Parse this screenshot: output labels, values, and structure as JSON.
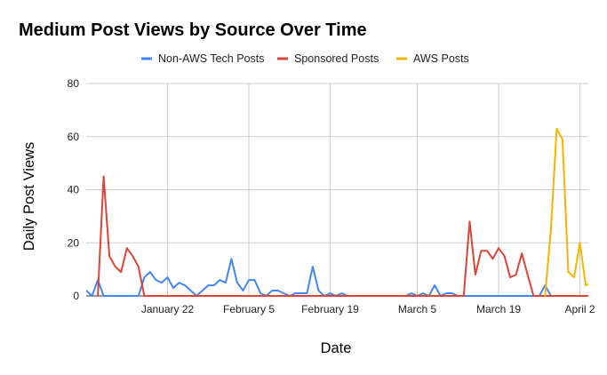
{
  "chart_data": {
    "type": "line",
    "title": "Medium Post Views by Source Over Time",
    "xlabel": "Date",
    "ylabel": "Daily Post Views",
    "ylim": [
      0,
      80
    ],
    "yticks": [
      "0",
      "20",
      "40",
      "60",
      "80"
    ],
    "xlim": [
      "2024-01-08",
      "2024-04-04"
    ],
    "xticks": [
      {
        "date": "2024-01-22",
        "label": "January 22"
      },
      {
        "date": "2024-02-05",
        "label": "February 5"
      },
      {
        "date": "2024-02-19",
        "label": "February 19"
      },
      {
        "date": "2024-03-05",
        "label": "March 5"
      },
      {
        "date": "2024-03-19",
        "label": "March 19"
      },
      {
        "date": "2024-04-02",
        "label": "April 2"
      }
    ],
    "grid": true,
    "legend_position": "top",
    "series": [
      {
        "name": "Non-AWS Tech Posts",
        "color": "#4285f4",
        "points": [
          [
            "2024-01-08",
            2
          ],
          [
            "2024-01-09",
            0
          ],
          [
            "2024-01-10",
            6
          ],
          [
            "2024-01-11",
            0
          ],
          [
            "2024-01-17",
            0
          ],
          [
            "2024-01-18",
            7
          ],
          [
            "2024-01-19",
            9
          ],
          [
            "2024-01-20",
            6
          ],
          [
            "2024-01-21",
            5
          ],
          [
            "2024-01-22",
            7
          ],
          [
            "2024-01-23",
            3
          ],
          [
            "2024-01-24",
            5
          ],
          [
            "2024-01-25",
            4
          ],
          [
            "2024-01-26",
            2
          ],
          [
            "2024-01-27",
            0
          ],
          [
            "2024-01-28",
            2
          ],
          [
            "2024-01-29",
            4
          ],
          [
            "2024-01-30",
            4
          ],
          [
            "2024-01-31",
            6
          ],
          [
            "2024-02-01",
            5
          ],
          [
            "2024-02-02",
            14
          ],
          [
            "2024-02-03",
            5
          ],
          [
            "2024-02-04",
            2
          ],
          [
            "2024-02-05",
            6
          ],
          [
            "2024-02-06",
            6
          ],
          [
            "2024-02-07",
            1
          ],
          [
            "2024-02-08",
            0
          ],
          [
            "2024-02-09",
            2
          ],
          [
            "2024-02-10",
            2
          ],
          [
            "2024-02-11",
            1
          ],
          [
            "2024-02-12",
            0
          ],
          [
            "2024-02-13",
            1
          ],
          [
            "2024-02-14",
            1
          ],
          [
            "2024-02-15",
            1
          ],
          [
            "2024-02-16",
            11
          ],
          [
            "2024-02-17",
            2
          ],
          [
            "2024-02-18",
            0
          ],
          [
            "2024-02-19",
            1
          ],
          [
            "2024-02-20",
            0
          ],
          [
            "2024-02-21",
            1
          ],
          [
            "2024-02-22",
            0
          ],
          [
            "2024-03-03",
            0
          ],
          [
            "2024-03-04",
            1
          ],
          [
            "2024-03-05",
            0
          ],
          [
            "2024-03-06",
            1
          ],
          [
            "2024-03-07",
            0
          ],
          [
            "2024-03-08",
            4
          ],
          [
            "2024-03-09",
            0
          ],
          [
            "2024-03-10",
            1
          ],
          [
            "2024-03-11",
            1
          ],
          [
            "2024-03-12",
            0
          ],
          [
            "2024-03-26",
            0
          ],
          [
            "2024-03-27",
            4
          ],
          [
            "2024-03-28",
            0
          ]
        ]
      },
      {
        "name": "Sponsored Posts",
        "color": "#db4437",
        "points": [
          [
            "2024-01-10",
            0
          ],
          [
            "2024-01-11",
            45
          ],
          [
            "2024-01-12",
            15
          ],
          [
            "2024-01-13",
            11
          ],
          [
            "2024-01-14",
            9
          ],
          [
            "2024-01-15",
            18
          ],
          [
            "2024-01-16",
            15
          ],
          [
            "2024-01-17",
            11
          ],
          [
            "2024-01-18",
            0
          ],
          [
            "2024-03-13",
            0
          ],
          [
            "2024-03-14",
            28
          ],
          [
            "2024-03-15",
            8
          ],
          [
            "2024-03-16",
            17
          ],
          [
            "2024-03-17",
            17
          ],
          [
            "2024-03-18",
            14
          ],
          [
            "2024-03-19",
            18
          ],
          [
            "2024-03-20",
            15
          ],
          [
            "2024-03-21",
            7
          ],
          [
            "2024-03-22",
            8
          ],
          [
            "2024-03-23",
            16
          ],
          [
            "2024-03-24",
            8
          ],
          [
            "2024-03-25",
            0
          ],
          [
            "2024-04-04",
            0
          ]
        ]
      },
      {
        "name": "AWS Posts",
        "color": "#f4b400",
        "points": [
          [
            "2024-03-27",
            0
          ],
          [
            "2024-03-28",
            25
          ],
          [
            "2024-03-29",
            63
          ],
          [
            "2024-03-30",
            59
          ],
          [
            "2024-03-31",
            9
          ],
          [
            "2024-04-01",
            7
          ],
          [
            "2024-04-02",
            20
          ],
          [
            "2024-04-03",
            4
          ],
          [
            "2024-04-04",
            5
          ],
          [
            "2024-04-05",
            3
          ]
        ]
      }
    ]
  }
}
